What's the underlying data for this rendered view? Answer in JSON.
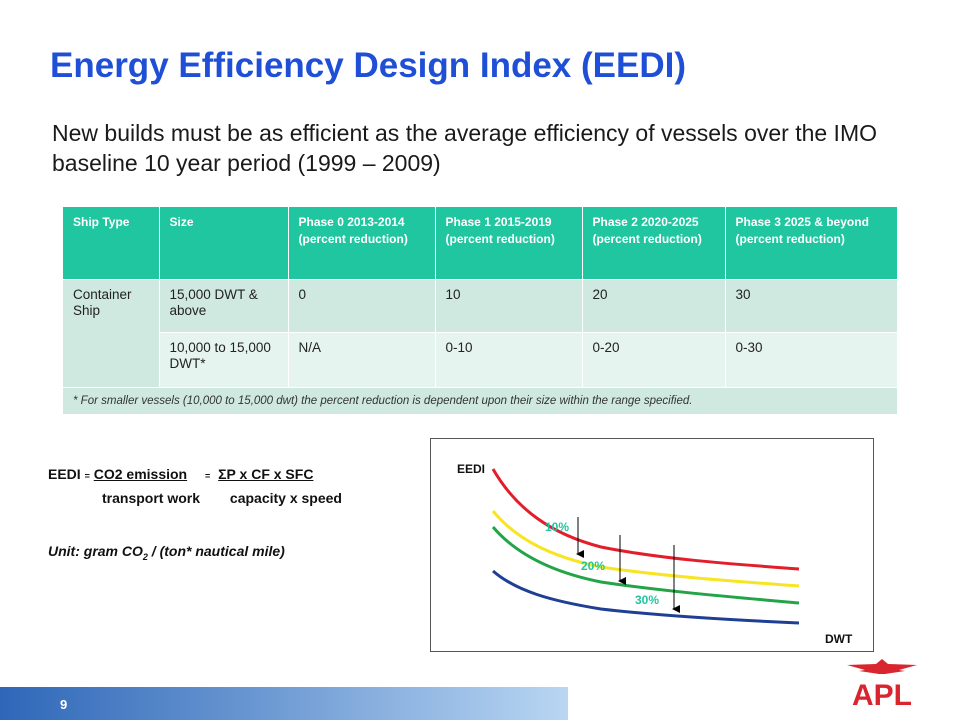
{
  "title": "Energy Efficiency Design Index (EEDI)",
  "subtitle": "New builds must be as efficient as the average efficiency of vessels over the IMO baseline 10 year period (1999 – 2009)",
  "table": {
    "headers": [
      "Ship Type",
      "Size",
      "Phase 0 2013-2014 (percent reduction)",
      "Phase 1 2015-2019 (percent reduction)",
      "Phase 2 2020-2025 (percent reduction)",
      "Phase 3 2025 & beyond (percent reduction)"
    ],
    "ship_type": "Container Ship",
    "rows": [
      [
        "15,000 DWT & above",
        "0",
        "10",
        "20",
        "30"
      ],
      [
        "10,000 to 15,000 DWT*",
        "N/A",
        "0-10",
        "0-20",
        "0-30"
      ]
    ],
    "note": "* For smaller vessels (10,000 to 15,000 dwt) the percent reduction is dependent upon their size within the range specified."
  },
  "formula": {
    "lhs": "EEDI",
    "eq": "=",
    "num1": "CO2 emission",
    "num2": "ΣP x CF x SFC",
    "den1": "transport work",
    "den2": "capacity x speed"
  },
  "unit": {
    "prefix": "Unit:  gram CO",
    "sub": "2",
    "suffix": " / (ton* nautical mile)"
  },
  "diagram": {
    "y_label": "EEDI",
    "x_label": "DWT",
    "reductions": [
      "10%",
      "20%",
      "30%"
    ],
    "colors": {
      "baseline": "#e31e2b",
      "phase1": "#f7e523",
      "phase2": "#22a447",
      "phase3": "#1e3f94",
      "labels": "#1fc6a0"
    }
  },
  "footer": {
    "page_number": "9",
    "logo_text": "APL",
    "bar_color_start": "#2f67b8",
    "bar_color_end": "#b9d6f2"
  }
}
